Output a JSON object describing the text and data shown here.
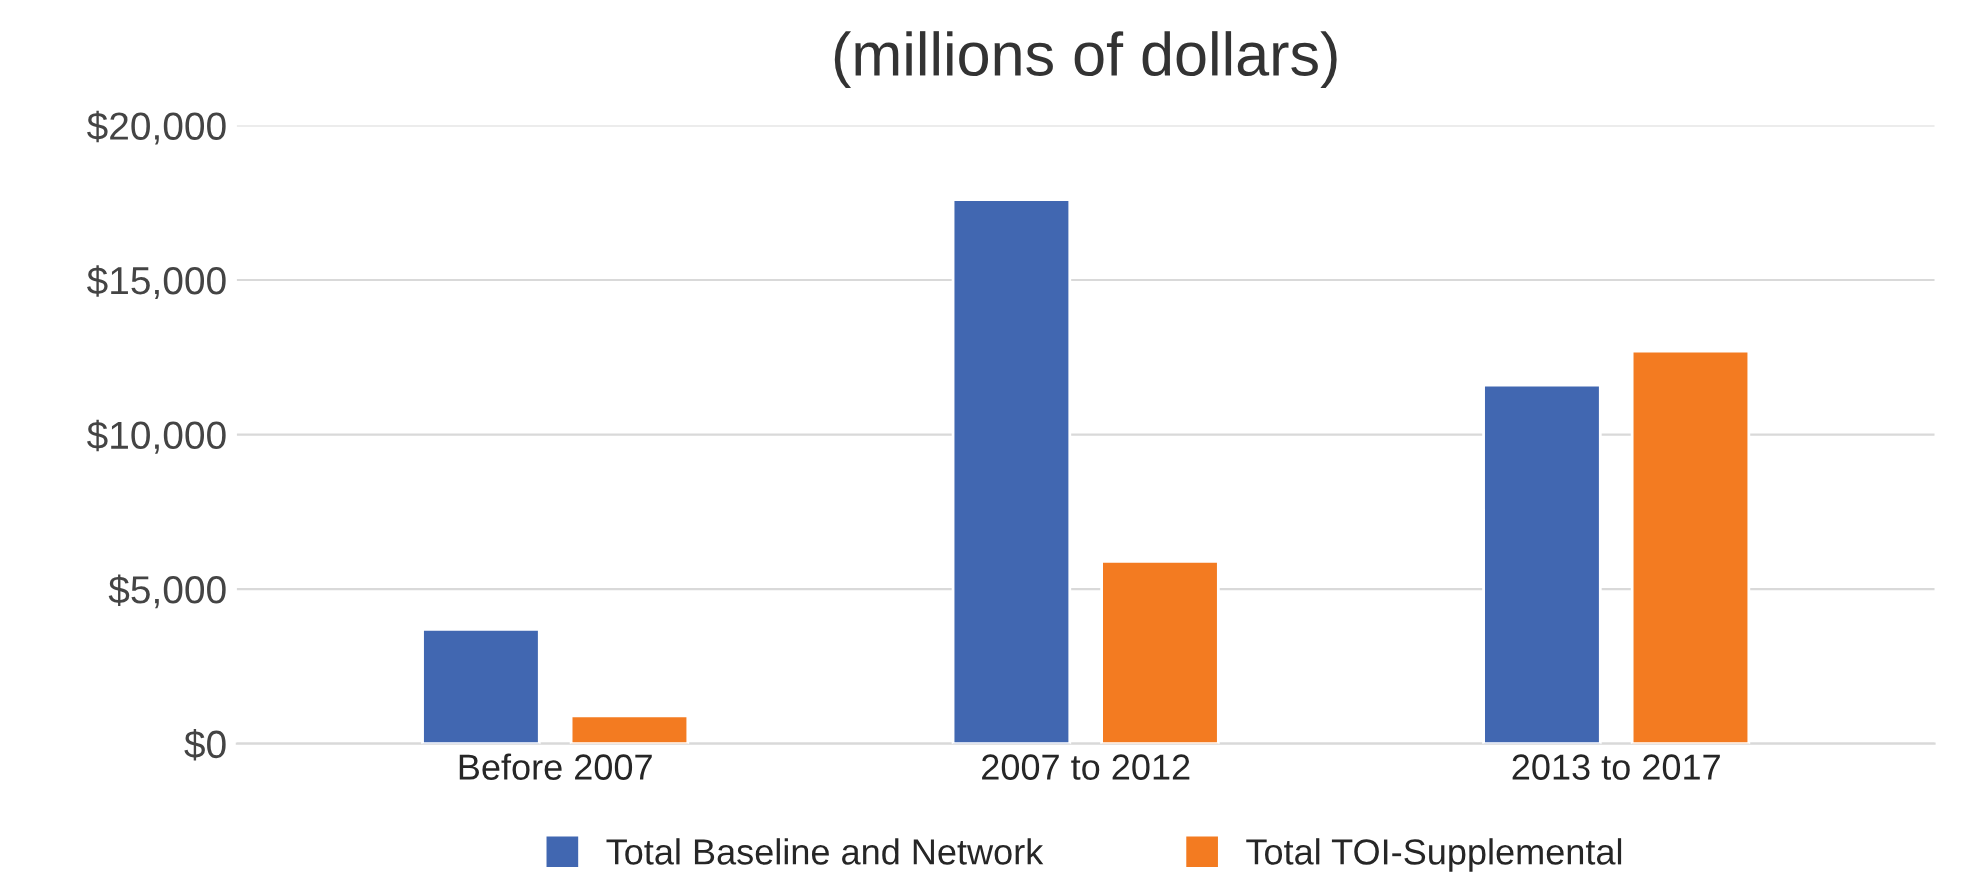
{
  "chart_data": {
    "type": "bar",
    "title": "(millions of dollars)",
    "categories": [
      "Before 2007",
      "2007 to 2012",
      "2013 to 2017"
    ],
    "series": [
      {
        "name": "Total Baseline and Network",
        "color": "#4167b1",
        "values": [
          3700,
          17600,
          11600
        ]
      },
      {
        "name": "Total TOI-Supplemental",
        "color": "#f37b21",
        "values": [
          900,
          5900,
          12700
        ]
      }
    ],
    "ylim": [
      0,
      20000
    ],
    "yticks": [
      {
        "value": 0,
        "label": "$0"
      },
      {
        "value": 5000,
        "label": "$5,000"
      },
      {
        "value": 10000,
        "label": "$10,000"
      },
      {
        "value": 15000,
        "label": "$15,000"
      },
      {
        "value": 20000,
        "label": "$20,000"
      }
    ],
    "grid": "y",
    "legend": "bottom"
  }
}
